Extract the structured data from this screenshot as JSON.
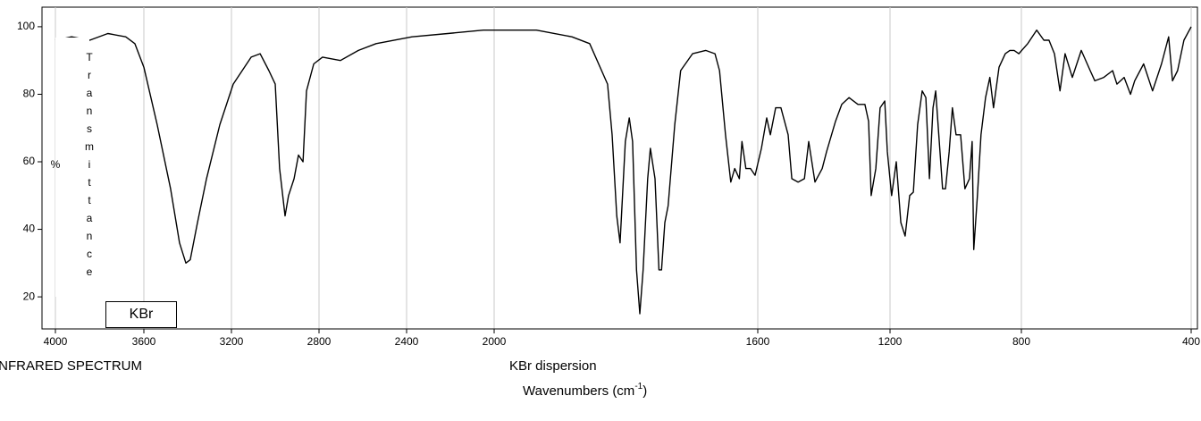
{
  "chart_data": {
    "type": "line",
    "title": "INFRARED SPECTRUM",
    "subtitle": "KBr dispersion",
    "x_label": [
      "Wavenumbers (cm",
      "-1",
      ")"
    ],
    "y_label": "% Transmittance",
    "annotation": "KBr",
    "color": "#000000",
    "grid": true,
    "xlim": [
      4000,
      400
    ],
    "xticks": [
      4000,
      3600,
      3200,
      2800,
      2400,
      2000,
      1600,
      1200,
      800,
      400
    ],
    "ylim": [
      10.5,
      105.8
    ],
    "yticks": [
      20,
      40,
      60,
      80,
      100
    ],
    "x": [
      4000,
      3927,
      3845,
      3763,
      3682,
      3641,
      3600,
      3539,
      3478,
      3437,
      3408,
      3388,
      3355,
      3314,
      3253,
      3192,
      3110,
      3069,
      3029,
      3000,
      2980,
      2955,
      2939,
      2914,
      2894,
      2873,
      2857,
      2824,
      2784,
      2702,
      2620,
      2539,
      2375,
      2212,
      2049,
      1936,
      1882,
      1855,
      1828,
      1821,
      1814,
      1809,
      1801,
      1795,
      1790,
      1784,
      1779,
      1774,
      1767,
      1763,
      1756,
      1750,
      1746,
      1741,
      1736,
      1726,
      1717,
      1699,
      1679,
      1665,
      1658,
      1649,
      1641,
      1635,
      1628,
      1624,
      1618,
      1611,
      1604,
      1589,
      1573,
      1562,
      1546,
      1530,
      1508,
      1497,
      1478,
      1459,
      1446,
      1427,
      1405,
      1392,
      1365,
      1346,
      1324,
      1297,
      1276,
      1265,
      1257,
      1243,
      1230,
      1216,
      1208,
      1195,
      1181,
      1167,
      1154,
      1140,
      1129,
      1116,
      1102,
      1091,
      1080,
      1069,
      1061,
      1048,
      1040,
      1031,
      1020,
      1010,
      999,
      985,
      972,
      958,
      950,
      945,
      934,
      923,
      909,
      896,
      885,
      868,
      849,
      835,
      822,
      808,
      785,
      764,
      747,
      735,
      722,
      709,
      697,
      680,
      659,
      638,
      627,
      606,
      585,
      575,
      558,
      543,
      533,
      512,
      491,
      470,
      453,
      444,
      432,
      417,
      400
    ],
    "values": [
      96,
      97,
      96,
      98,
      97,
      95,
      88,
      71,
      52,
      36,
      30,
      31,
      42,
      55,
      71,
      83,
      91,
      92,
      87,
      83,
      58,
      44,
      50,
      55,
      62,
      60,
      81,
      89,
      91,
      90,
      93,
      95,
      97,
      98,
      99,
      99,
      97,
      95,
      83,
      68,
      44,
      36,
      66,
      73,
      66,
      28,
      15,
      28,
      55,
      64,
      55,
      28,
      28,
      42,
      47,
      71,
      87,
      92,
      93,
      92,
      87,
      68,
      54,
      58,
      55,
      66,
      58,
      58,
      56,
      64,
      73,
      68,
      76,
      76,
      68,
      55,
      54,
      55,
      66,
      54,
      58,
      63,
      72,
      77,
      79,
      77,
      77,
      72,
      50,
      58,
      76,
      78,
      63,
      50,
      60,
      42,
      38,
      50,
      51,
      71,
      81,
      79,
      55,
      76,
      81,
      63,
      52,
      52,
      63,
      76,
      68,
      68,
      52,
      55,
      66,
      34,
      50,
      68,
      79,
      85,
      76,
      88,
      92,
      93,
      93,
      92,
      95,
      99,
      96,
      96,
      92,
      81,
      92,
      85,
      93,
      87,
      84,
      85,
      87,
      83,
      85,
      80,
      84,
      89,
      81,
      89,
      97,
      84,
      87,
      96,
      100
    ]
  }
}
